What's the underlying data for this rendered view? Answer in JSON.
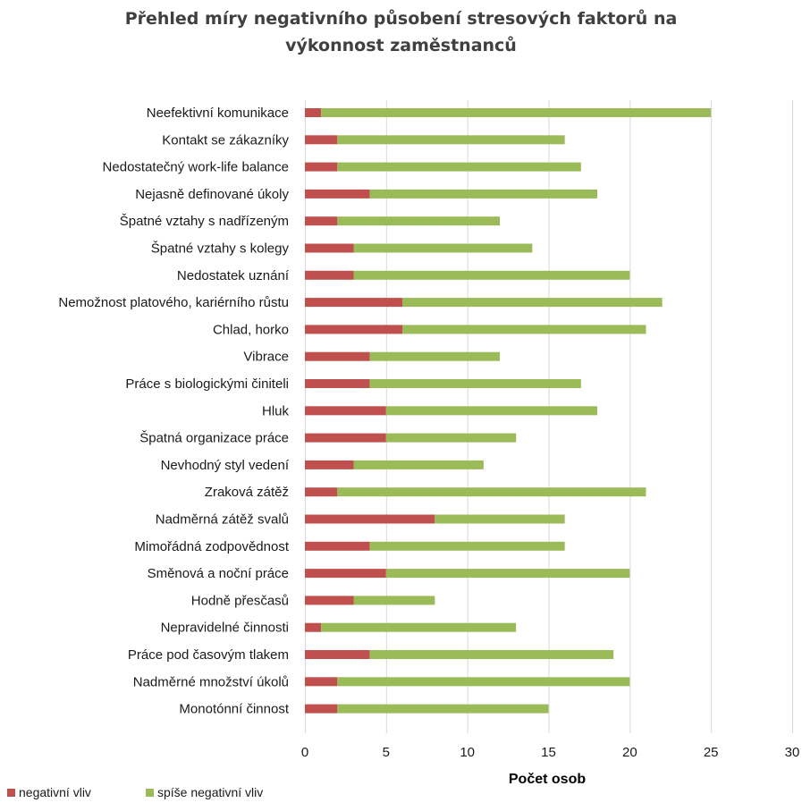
{
  "chart_data": {
    "type": "bar",
    "orientation": "horizontal",
    "stacked": true,
    "title_lines": [
      "Přehled míry negativního působení stresových faktorů na",
      "výkonnost zaměstnanců"
    ],
    "xlabel": "Počet osob",
    "ylabel": "",
    "xlim": [
      0,
      30
    ],
    "x_ticks": [
      0,
      5,
      10,
      15,
      20,
      25,
      30
    ],
    "grid": "vertical",
    "legend_position": "bottom-left",
    "categories": [
      "Neefektivní komunikace",
      "Kontakt se zákazníky",
      "Nedostatečný work-life balance",
      "Nejasně definované úkoly",
      "Špatné vztahy s nadřízeným",
      "Špatné vztahy s kolegy",
      "Nedostatek uznání",
      "Nemožnost platového, kariérního růstu",
      "Chlad, horko",
      "Vibrace",
      "Práce s biologickými činiteli",
      "Hluk",
      "Špatná organizace práce",
      "Nevhodný styl vedení",
      "Zraková zátěž",
      "Nadměrná zátěž svalů",
      "Mimořádná zodpovědnost",
      "Směnová a noční práce",
      "Hodně přesčasů",
      "Nepravidelné činnosti",
      "Práce pod časovým tlakem",
      "Nadměrné množství úkolů",
      "Monotónní činnost"
    ],
    "series": [
      {
        "name": "negativní vliv",
        "color": "#c0504d",
        "values": [
          1,
          2,
          2,
          4,
          2,
          3,
          3,
          6,
          6,
          4,
          4,
          5,
          5,
          3,
          2,
          8,
          4,
          5,
          3,
          1,
          4,
          2,
          2
        ]
      },
      {
        "name": "spíše negativní vliv",
        "color": "#9bbb59",
        "values": [
          24,
          14,
          15,
          14,
          10,
          11,
          17,
          16,
          15,
          8,
          13,
          13,
          8,
          8,
          19,
          8,
          12,
          15,
          5,
          12,
          15,
          18,
          13
        ]
      }
    ]
  }
}
